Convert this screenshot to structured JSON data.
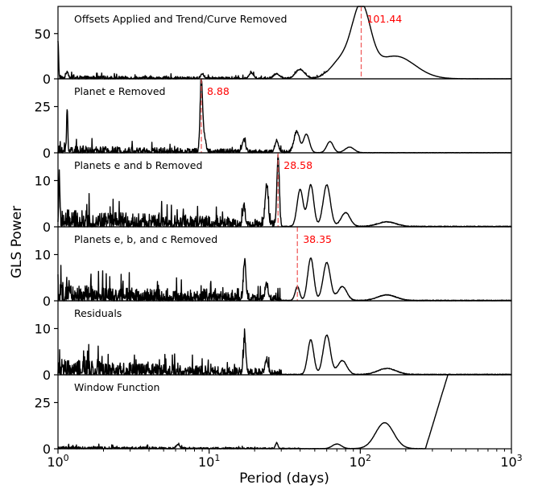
{
  "chart_data": [
    {
      "type": "line",
      "title": "Offsets Applied and Trend/Curve Removed",
      "ylim": [
        0,
        80
      ],
      "yticks": [
        0,
        50
      ],
      "peaks": [
        {
          "period": 1.0,
          "power": 40,
          "width": 0.004
        },
        {
          "period": 75,
          "power": 20,
          "width": 0.07
        },
        {
          "period": 101.44,
          "power": 75,
          "width": 0.06
        },
        {
          "period": 170,
          "power": 25,
          "width": 0.13
        },
        {
          "period": 40,
          "power": 10,
          "width": 0.03
        },
        {
          "period": 28,
          "power": 5,
          "width": 0.02
        },
        {
          "period": 9,
          "power": 5,
          "width": 0.01
        },
        {
          "period": 19,
          "power": 6,
          "width": 0.015
        },
        {
          "period": 1.15,
          "power": 7,
          "width": 0.008
        }
      ],
      "noise": {
        "amp": 3.5,
        "fmax": 60
      },
      "marker": {
        "period": 101.44,
        "label": "101.44"
      }
    },
    {
      "type": "line",
      "title": "Planet e Removed",
      "ylim": [
        0,
        40
      ],
      "yticks": [
        0,
        25
      ],
      "peaks": [
        {
          "period": 8.88,
          "power": 38,
          "width": 0.008
        },
        {
          "period": 1.15,
          "power": 23,
          "width": 0.004
        },
        {
          "period": 9.3,
          "power": 8,
          "width": 0.01
        },
        {
          "period": 17,
          "power": 7,
          "width": 0.01
        },
        {
          "period": 28,
          "power": 6,
          "width": 0.012
        },
        {
          "period": 38,
          "power": 11,
          "width": 0.018
        },
        {
          "period": 44,
          "power": 10,
          "width": 0.02
        },
        {
          "period": 63,
          "power": 6,
          "width": 0.022
        },
        {
          "period": 85,
          "power": 3,
          "width": 0.03
        }
      ],
      "noise": {
        "amp": 4.0,
        "fmax": 40
      },
      "marker": {
        "period": 8.88,
        "label": "8.88"
      }
    },
    {
      "type": "line",
      "title": "Planets e and b Removed",
      "ylim": [
        0,
        16
      ],
      "yticks": [
        0,
        10
      ],
      "peaks": [
        {
          "period": 28.58,
          "power": 15,
          "width": 0.008
        },
        {
          "period": 1.02,
          "power": 12,
          "width": 0.003
        },
        {
          "period": 17,
          "power": 4,
          "width": 0.008
        },
        {
          "period": 24,
          "power": 9,
          "width": 0.01
        },
        {
          "period": 40,
          "power": 8,
          "width": 0.02
        },
        {
          "period": 47,
          "power": 9,
          "width": 0.02
        },
        {
          "period": 60,
          "power": 9,
          "width": 0.024
        },
        {
          "period": 80,
          "power": 3,
          "width": 0.03
        },
        {
          "period": 150,
          "power": 1,
          "width": 0.06
        }
      ],
      "noise": {
        "amp": 3.8,
        "fmax": 30
      },
      "marker": {
        "period": 28.58,
        "label": "28.58"
      }
    },
    {
      "type": "line",
      "title": "Planets e, b, and c Removed",
      "ylim": [
        0,
        16
      ],
      "yticks": [
        0,
        10
      ],
      "peaks": [
        {
          "period": 38.35,
          "power": 3,
          "width": 0.015
        },
        {
          "period": 17.2,
          "power": 8.5,
          "width": 0.008
        },
        {
          "period": 24,
          "power": 3,
          "width": 0.01
        },
        {
          "period": 47,
          "power": 9.2,
          "width": 0.02
        },
        {
          "period": 60,
          "power": 8.2,
          "width": 0.024
        },
        {
          "period": 76,
          "power": 3,
          "width": 0.03
        },
        {
          "period": 150,
          "power": 1.2,
          "width": 0.06
        }
      ],
      "noise": {
        "amp": 3.6,
        "fmax": 30
      },
      "marker": {
        "period": 38.35,
        "label": "38.35"
      }
    },
    {
      "type": "line",
      "title": "Residuals",
      "ylim": [
        0,
        16
      ],
      "yticks": [
        0,
        10
      ],
      "peaks": [
        {
          "period": 17.2,
          "power": 7.5,
          "width": 0.008
        },
        {
          "period": 24,
          "power": 3,
          "width": 0.01
        },
        {
          "period": 47,
          "power": 7.5,
          "width": 0.02
        },
        {
          "period": 60,
          "power": 8.5,
          "width": 0.024
        },
        {
          "period": 76,
          "power": 3,
          "width": 0.03
        },
        {
          "period": 150,
          "power": 1.3,
          "width": 0.06
        }
      ],
      "noise": {
        "amp": 3.4,
        "fmax": 30
      }
    },
    {
      "type": "line",
      "title": "Window Function",
      "ylim": [
        0,
        40
      ],
      "yticks": [
        0,
        25
      ],
      "peaks": [
        {
          "period": 6.2,
          "power": 2,
          "width": 0.01
        },
        {
          "period": 28,
          "power": 3,
          "width": 0.008
        },
        {
          "period": 70,
          "power": 2.5,
          "width": 0.03
        },
        {
          "period": 145,
          "power": 14,
          "width": 0.06
        }
      ],
      "noise": {
        "amp": 1.3,
        "fmax": 40
      },
      "rise": {
        "from_period": 270,
        "to_period": 380,
        "to_power": 40
      }
    }
  ],
  "axes": {
    "xlabel": "Period (days)",
    "ylabel": "GLS Power",
    "xscale": "log",
    "xlim": [
      1,
      1000
    ],
    "xtick_base": "10",
    "xtick_exponents": [
      "0",
      "1",
      "2",
      "3"
    ]
  },
  "colors": {
    "series": "#000000",
    "marker": "#ff0000",
    "marker_line": "#f06060"
  }
}
